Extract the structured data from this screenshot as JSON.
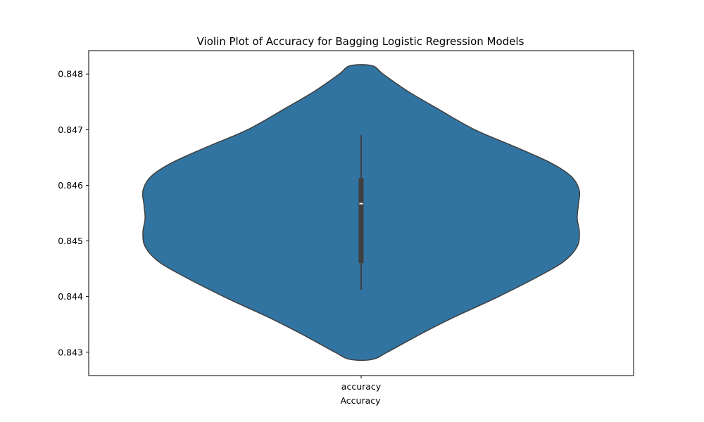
{
  "chart_data": {
    "type": "violin",
    "title": "Violin Plot of Accuracy for Bagging Logistic Regression Models",
    "xlabel": "Accuracy",
    "ylabel": "",
    "categories": [
      "accuracy"
    ],
    "ylim": [
      0.84258,
      0.84842
    ],
    "yticks": [
      "0.843",
      "0.844",
      "0.845",
      "0.846",
      "0.847",
      "0.848"
    ],
    "grid": false,
    "series": [
      {
        "category": "accuracy",
        "color": "#3274a1",
        "edge_color": "#3f3f3f",
        "min": 0.84287,
        "max": 0.84815,
        "whisker_low": 0.84412,
        "whisker_high": 0.8469,
        "q1": 0.8446,
        "q3": 0.84613,
        "median": 0.84567,
        "density": [
          {
            "y": 0.84287,
            "w": 0.05
          },
          {
            "y": 0.843,
            "w": 0.12
          },
          {
            "y": 0.8433,
            "w": 0.26
          },
          {
            "y": 0.8436,
            "w": 0.41
          },
          {
            "y": 0.844,
            "w": 0.63
          },
          {
            "y": 0.8444,
            "w": 0.83
          },
          {
            "y": 0.84465,
            "w": 0.935
          },
          {
            "y": 0.8449,
            "w": 0.99
          },
          {
            "y": 0.84515,
            "w": 1.0
          },
          {
            "y": 0.8454,
            "w": 0.99
          },
          {
            "y": 0.84565,
            "w": 0.995
          },
          {
            "y": 0.8459,
            "w": 1.0
          },
          {
            "y": 0.84615,
            "w": 0.965
          },
          {
            "y": 0.8464,
            "w": 0.87
          },
          {
            "y": 0.8467,
            "w": 0.7
          },
          {
            "y": 0.847,
            "w": 0.52
          },
          {
            "y": 0.8474,
            "w": 0.34
          },
          {
            "y": 0.8477,
            "w": 0.21
          },
          {
            "y": 0.848,
            "w": 0.1
          },
          {
            "y": 0.84815,
            "w": 0.05
          }
        ]
      }
    ]
  }
}
